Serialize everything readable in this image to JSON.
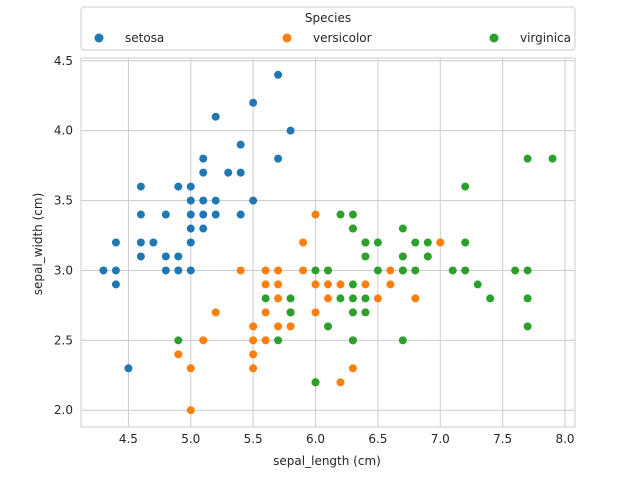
{
  "chart_data": {
    "type": "scatter",
    "xlabel": "sepal_length (cm)",
    "ylabel": "sepal_width (cm)",
    "xlim": [
      4.12,
      8.08
    ],
    "ylim": [
      1.88,
      4.52
    ],
    "xticks": [
      "4.5",
      "5.0",
      "5.5",
      "6.0",
      "6.5",
      "7.0",
      "7.5",
      "8.0"
    ],
    "yticks": [
      "2.0",
      "2.5",
      "3.0",
      "3.5",
      "4.0",
      "4.5"
    ],
    "grid": true,
    "legend": {
      "title": "Species",
      "placement": "top"
    },
    "series": [
      {
        "name": "setosa",
        "color": "#1f77b4",
        "points": [
          [
            4.3,
            3.0
          ],
          [
            4.4,
            2.9
          ],
          [
            4.4,
            3.0
          ],
          [
            4.4,
            3.2
          ],
          [
            4.5,
            2.3
          ],
          [
            4.6,
            3.1
          ],
          [
            4.6,
            3.2
          ],
          [
            4.6,
            3.4
          ],
          [
            4.6,
            3.6
          ],
          [
            4.7,
            3.2
          ],
          [
            4.8,
            3.0
          ],
          [
            4.8,
            3.1
          ],
          [
            4.8,
            3.4
          ],
          [
            4.9,
            3.0
          ],
          [
            4.9,
            3.1
          ],
          [
            4.9,
            3.6
          ],
          [
            5.0,
            3.0
          ],
          [
            5.0,
            3.2
          ],
          [
            5.0,
            3.3
          ],
          [
            5.0,
            3.4
          ],
          [
            5.0,
            3.5
          ],
          [
            5.0,
            3.6
          ],
          [
            5.1,
            3.3
          ],
          [
            5.1,
            3.4
          ],
          [
            5.1,
            3.5
          ],
          [
            5.1,
            3.7
          ],
          [
            5.1,
            3.8
          ],
          [
            5.2,
            3.4
          ],
          [
            5.2,
            3.5
          ],
          [
            5.2,
            4.1
          ],
          [
            5.3,
            3.7
          ],
          [
            5.4,
            3.4
          ],
          [
            5.4,
            3.7
          ],
          [
            5.4,
            3.9
          ],
          [
            5.5,
            3.5
          ],
          [
            5.5,
            4.2
          ],
          [
            5.7,
            3.8
          ],
          [
            5.7,
            4.4
          ],
          [
            5.8,
            4.0
          ]
        ]
      },
      {
        "name": "versicolor",
        "color": "#ff7f0e",
        "points": [
          [
            4.9,
            2.4
          ],
          [
            5.0,
            2.0
          ],
          [
            5.0,
            2.3
          ],
          [
            5.1,
            2.5
          ],
          [
            5.2,
            2.7
          ],
          [
            5.4,
            3.0
          ],
          [
            5.5,
            2.3
          ],
          [
            5.5,
            2.4
          ],
          [
            5.5,
            2.5
          ],
          [
            5.5,
            2.6
          ],
          [
            5.6,
            2.5
          ],
          [
            5.6,
            2.7
          ],
          [
            5.6,
            2.9
          ],
          [
            5.6,
            3.0
          ],
          [
            5.7,
            2.6
          ],
          [
            5.7,
            2.8
          ],
          [
            5.7,
            2.9
          ],
          [
            5.7,
            3.0
          ],
          [
            5.8,
            2.6
          ],
          [
            5.8,
            2.7
          ],
          [
            5.9,
            3.0
          ],
          [
            5.9,
            3.2
          ],
          [
            6.0,
            2.2
          ],
          [
            6.0,
            2.7
          ],
          [
            6.0,
            2.9
          ],
          [
            6.0,
            3.4
          ],
          [
            6.1,
            2.8
          ],
          [
            6.1,
            2.9
          ],
          [
            6.1,
            3.0
          ],
          [
            6.2,
            2.2
          ],
          [
            6.2,
            2.9
          ],
          [
            6.3,
            2.3
          ],
          [
            6.3,
            2.5
          ],
          [
            6.3,
            3.3
          ],
          [
            6.4,
            2.9
          ],
          [
            6.4,
            3.2
          ],
          [
            6.5,
            2.8
          ],
          [
            6.6,
            2.9
          ],
          [
            6.6,
            3.0
          ],
          [
            6.7,
            3.0
          ],
          [
            6.7,
            3.1
          ],
          [
            6.8,
            2.8
          ],
          [
            6.9,
            3.1
          ],
          [
            7.0,
            3.2
          ]
        ]
      },
      {
        "name": "virginica",
        "color": "#2ca02c",
        "points": [
          [
            4.9,
            2.5
          ],
          [
            5.6,
            2.8
          ],
          [
            5.7,
            2.5
          ],
          [
            5.8,
            2.7
          ],
          [
            5.8,
            2.8
          ],
          [
            6.0,
            2.2
          ],
          [
            6.0,
            3.0
          ],
          [
            6.1,
            2.6
          ],
          [
            6.1,
            3.0
          ],
          [
            6.2,
            2.8
          ],
          [
            6.2,
            3.4
          ],
          [
            6.3,
            2.5
          ],
          [
            6.3,
            2.7
          ],
          [
            6.3,
            2.8
          ],
          [
            6.3,
            2.9
          ],
          [
            6.3,
            3.3
          ],
          [
            6.3,
            3.4
          ],
          [
            6.4,
            2.7
          ],
          [
            6.4,
            2.8
          ],
          [
            6.4,
            3.1
          ],
          [
            6.4,
            3.2
          ],
          [
            6.5,
            3.0
          ],
          [
            6.5,
            3.2
          ],
          [
            6.7,
            2.5
          ],
          [
            6.7,
            3.0
          ],
          [
            6.7,
            3.1
          ],
          [
            6.7,
            3.3
          ],
          [
            6.8,
            3.0
          ],
          [
            6.8,
            3.2
          ],
          [
            6.9,
            3.1
          ],
          [
            6.9,
            3.2
          ],
          [
            7.1,
            3.0
          ],
          [
            7.2,
            3.0
          ],
          [
            7.2,
            3.2
          ],
          [
            7.2,
            3.6
          ],
          [
            7.3,
            2.9
          ],
          [
            7.4,
            2.8
          ],
          [
            7.6,
            3.0
          ],
          [
            7.7,
            2.6
          ],
          [
            7.7,
            2.8
          ],
          [
            7.7,
            3.0
          ],
          [
            7.7,
            3.8
          ],
          [
            7.9,
            3.8
          ]
        ]
      }
    ]
  }
}
